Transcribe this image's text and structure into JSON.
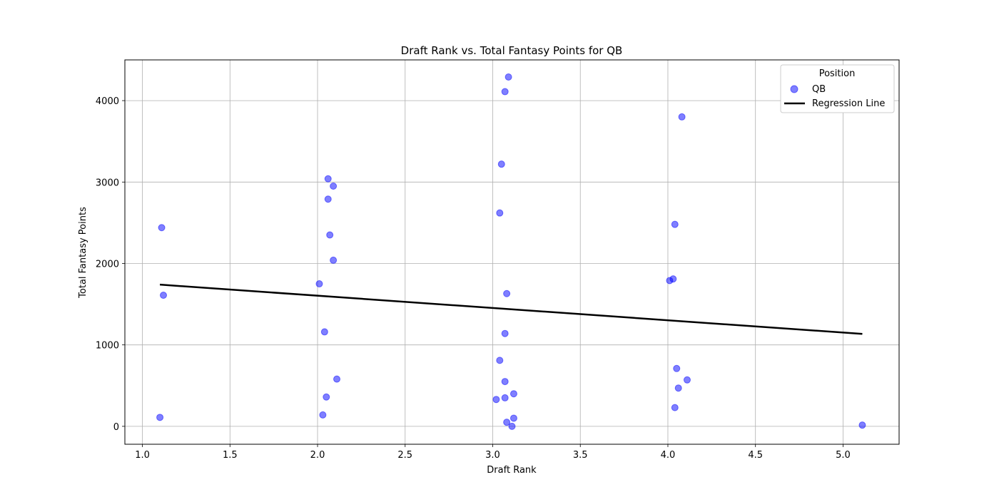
{
  "chart_data": {
    "type": "scatter",
    "title": "Draft Rank vs. Total Fantasy Points for QB",
    "xlabel": "Draft Rank",
    "ylabel": "Total Fantasy Points",
    "xlim": [
      0.9,
      5.32
    ],
    "ylim": [
      -220,
      4500
    ],
    "xticks": [
      1.0,
      1.5,
      2.0,
      2.5,
      3.0,
      3.5,
      4.0,
      4.5,
      5.0
    ],
    "xtick_labels": [
      "1.0",
      "1.5",
      "2.0",
      "2.5",
      "3.0",
      "3.5",
      "4.0",
      "4.5",
      "5.0"
    ],
    "yticks": [
      0,
      1000,
      2000,
      3000,
      4000
    ],
    "ytick_labels": [
      "0",
      "1000",
      "2000",
      "3000",
      "4000"
    ],
    "grid": true,
    "legend": {
      "title": "Position",
      "placement": "top-right",
      "entries": [
        "QB",
        "Regression Line"
      ]
    },
    "series": [
      {
        "name": "QB",
        "type": "scatter",
        "color": "#0000ff",
        "alpha": 0.5,
        "points": [
          {
            "x": 1.1,
            "y": 110
          },
          {
            "x": 1.11,
            "y": 2440
          },
          {
            "x": 1.12,
            "y": 1610
          },
          {
            "x": 2.01,
            "y": 1750
          },
          {
            "x": 2.03,
            "y": 140
          },
          {
            "x": 2.04,
            "y": 1160
          },
          {
            "x": 2.05,
            "y": 360
          },
          {
            "x": 2.06,
            "y": 3040
          },
          {
            "x": 2.06,
            "y": 2790
          },
          {
            "x": 2.07,
            "y": 2350
          },
          {
            "x": 2.09,
            "y": 2950
          },
          {
            "x": 2.09,
            "y": 2040
          },
          {
            "x": 2.11,
            "y": 580
          },
          {
            "x": 3.02,
            "y": 330
          },
          {
            "x": 3.04,
            "y": 2620
          },
          {
            "x": 3.04,
            "y": 810
          },
          {
            "x": 3.05,
            "y": 3220
          },
          {
            "x": 3.07,
            "y": 4110
          },
          {
            "x": 3.07,
            "y": 1140
          },
          {
            "x": 3.07,
            "y": 550
          },
          {
            "x": 3.07,
            "y": 350
          },
          {
            "x": 3.08,
            "y": 1630
          },
          {
            "x": 3.08,
            "y": 50
          },
          {
            "x": 3.09,
            "y": 4290
          },
          {
            "x": 3.11,
            "y": 0
          },
          {
            "x": 3.12,
            "y": 400
          },
          {
            "x": 3.12,
            "y": 100
          },
          {
            "x": 4.01,
            "y": 1790
          },
          {
            "x": 4.03,
            "y": 1810
          },
          {
            "x": 4.04,
            "y": 2480
          },
          {
            "x": 4.04,
            "y": 230
          },
          {
            "x": 4.05,
            "y": 710
          },
          {
            "x": 4.06,
            "y": 470
          },
          {
            "x": 4.08,
            "y": 3800
          },
          {
            "x": 4.11,
            "y": 570
          },
          {
            "x": 5.11,
            "y": 15
          }
        ]
      },
      {
        "name": "Regression Line",
        "type": "line",
        "color": "#000000",
        "points": [
          {
            "x": 1.1,
            "y": 1740
          },
          {
            "x": 5.11,
            "y": 1135
          }
        ]
      }
    ]
  }
}
